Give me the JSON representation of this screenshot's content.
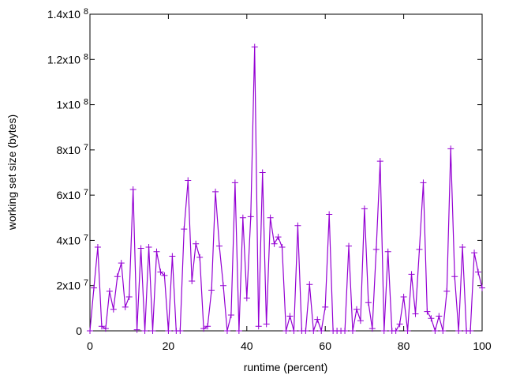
{
  "chart_data": {
    "type": "line",
    "title": "",
    "xlabel": "runtime (percent)",
    "ylabel": "working set size (bytes)",
    "xlim": [
      0,
      100
    ],
    "ylim": [
      0,
      140000000
    ],
    "grid": false,
    "legend": "none",
    "color": "#9400d3",
    "marker": "plus",
    "x_ticks": [
      {
        "value": 0,
        "label": "0"
      },
      {
        "value": 20,
        "label": "20"
      },
      {
        "value": 40,
        "label": "40"
      },
      {
        "value": 60,
        "label": "60"
      },
      {
        "value": 80,
        "label": "80"
      },
      {
        "value": 100,
        "label": "100"
      }
    ],
    "y_ticks": [
      {
        "value": 0,
        "base": "0",
        "exp": ""
      },
      {
        "value": 20000000,
        "base": "2x10",
        "exp": "7"
      },
      {
        "value": 40000000,
        "base": "4x10",
        "exp": "7"
      },
      {
        "value": 60000000,
        "base": "6x10",
        "exp": "7"
      },
      {
        "value": 80000000,
        "base": "8x10",
        "exp": "7"
      },
      {
        "value": 100000000,
        "base": "1x10",
        "exp": "8"
      },
      {
        "value": 120000000,
        "base": "1.2x10",
        "exp": "8"
      },
      {
        "value": 140000000,
        "base": "1.4x10",
        "exp": "8"
      }
    ],
    "series": [
      {
        "name": "working set",
        "x": [
          0,
          1,
          2,
          3,
          4,
          5,
          6,
          7,
          8,
          9,
          10,
          11,
          12,
          13,
          14,
          15,
          16,
          17,
          18,
          19,
          20,
          21,
          22,
          23,
          24,
          25,
          26,
          27,
          28,
          29,
          30,
          31,
          32,
          33,
          34,
          35,
          36,
          37,
          38,
          39,
          40,
          41,
          42,
          43,
          44,
          45,
          46,
          47,
          48,
          49,
          50,
          51,
          52,
          53,
          54,
          55,
          56,
          57,
          58,
          59,
          60,
          61,
          62,
          63,
          64,
          65,
          66,
          67,
          68,
          69,
          70,
          71,
          72,
          73,
          74,
          75,
          76,
          77,
          78,
          79,
          80,
          81,
          82,
          83,
          84,
          85,
          86,
          87,
          88,
          89,
          90,
          91,
          92,
          93,
          94,
          95,
          96,
          97,
          98,
          99,
          100
        ],
        "values": [
          0,
          19000000.0,
          37000000.0,
          2000000.0,
          1000000.0,
          17500000.0,
          9500000.0,
          24000000.0,
          30000000.0,
          10500000.0,
          15000000.0,
          62500000.0,
          500000.0,
          36500000.0,
          0,
          37000000.0,
          0,
          35000000.0,
          26000000.0,
          24500000.0,
          0,
          33000000.0,
          0,
          0,
          45000000.0,
          66500000.0,
          22000000.0,
          38500000.0,
          32500000.0,
          1000000.0,
          2000000.0,
          18000000.0,
          61500000.0,
          37500000.0,
          20000000.0,
          0,
          7000000.0,
          65500000.0,
          0,
          50000000.0,
          14500000.0,
          50500000.0,
          125500000.0,
          2000000.0,
          70000000.0,
          3000000.0,
          50000000.0,
          38500000.0,
          41500000.0,
          37000000.0,
          0,
          6500000.0,
          0,
          46500000.0,
          0,
          0,
          20500000.0,
          0,
          5000000.0,
          0,
          10500000.0,
          51500000.0,
          0,
          0,
          0,
          0,
          37500000.0,
          0,
          9500000.0,
          4500000.0,
          54000000.0,
          12500000.0,
          1000000.0,
          36000000.0,
          75000000.0,
          0,
          35000000.0,
          0,
          0,
          3000000.0,
          15000000.0,
          0,
          25000000.0,
          7500000.0,
          36000000.0,
          65500000.0,
          8500000.0,
          5500000.0,
          0,
          6500000.0,
          0,
          17500000.0,
          80500000.0,
          24000000.0,
          0,
          37000000.0,
          0,
          0,
          34500000.0,
          26000000.0,
          19000000.0
        ]
      }
    ]
  }
}
